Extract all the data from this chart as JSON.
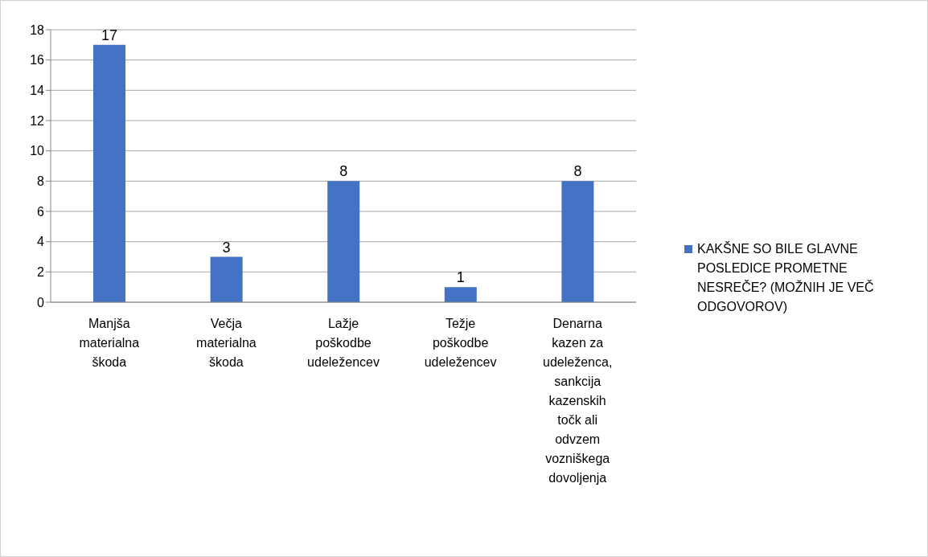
{
  "chart_data": {
    "type": "bar",
    "categories": [
      "Manjša materialna škoda",
      "Večja materialna škoda",
      "Lažje poškodbe udeležencev",
      "Težje poškodbe udeležencev",
      "Denarna kazen za udeleženca, sankcija kazenskih točk ali odvzem vozniškega dovoljenja"
    ],
    "series": [
      {
        "name": "KAKŠNE SO BILE GLAVNE POSLEDICE PROMETNE NESREČE? (MOŽNIH JE VEČ ODGOVOROV)",
        "color": "#4472c4",
        "values": [
          17,
          3,
          8,
          1,
          8
        ]
      }
    ],
    "ylim": [
      0,
      18
    ],
    "yticks": [
      0,
      2,
      4,
      6,
      8,
      10,
      12,
      14,
      16,
      18
    ],
    "grid": "y",
    "legend": "right",
    "data_labels": true
  }
}
